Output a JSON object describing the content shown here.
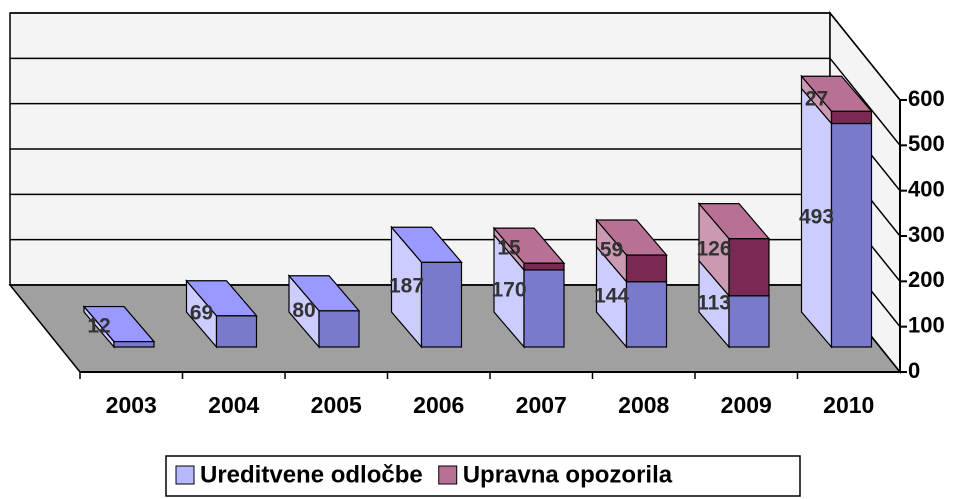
{
  "chart_data": {
    "type": "bar3d_stacked",
    "categories": [
      "2003",
      "2004",
      "2005",
      "2006",
      "2007",
      "2008",
      "2009",
      "2010"
    ],
    "series": [
      {
        "name": "Ureditvene odločbe",
        "color": "#9999ff",
        "values": [
          12,
          69,
          80,
          187,
          170,
          144,
          113,
          493
        ]
      },
      {
        "name": "Upravna opozorila",
        "color": "#993366",
        "values": [
          null,
          null,
          null,
          null,
          15,
          59,
          126,
          27
        ]
      }
    ],
    "ylim": [
      0,
      600
    ],
    "yticks": [
      0,
      100,
      200,
      300,
      400,
      500,
      600
    ],
    "grid": true,
    "legend": "bottom"
  }
}
